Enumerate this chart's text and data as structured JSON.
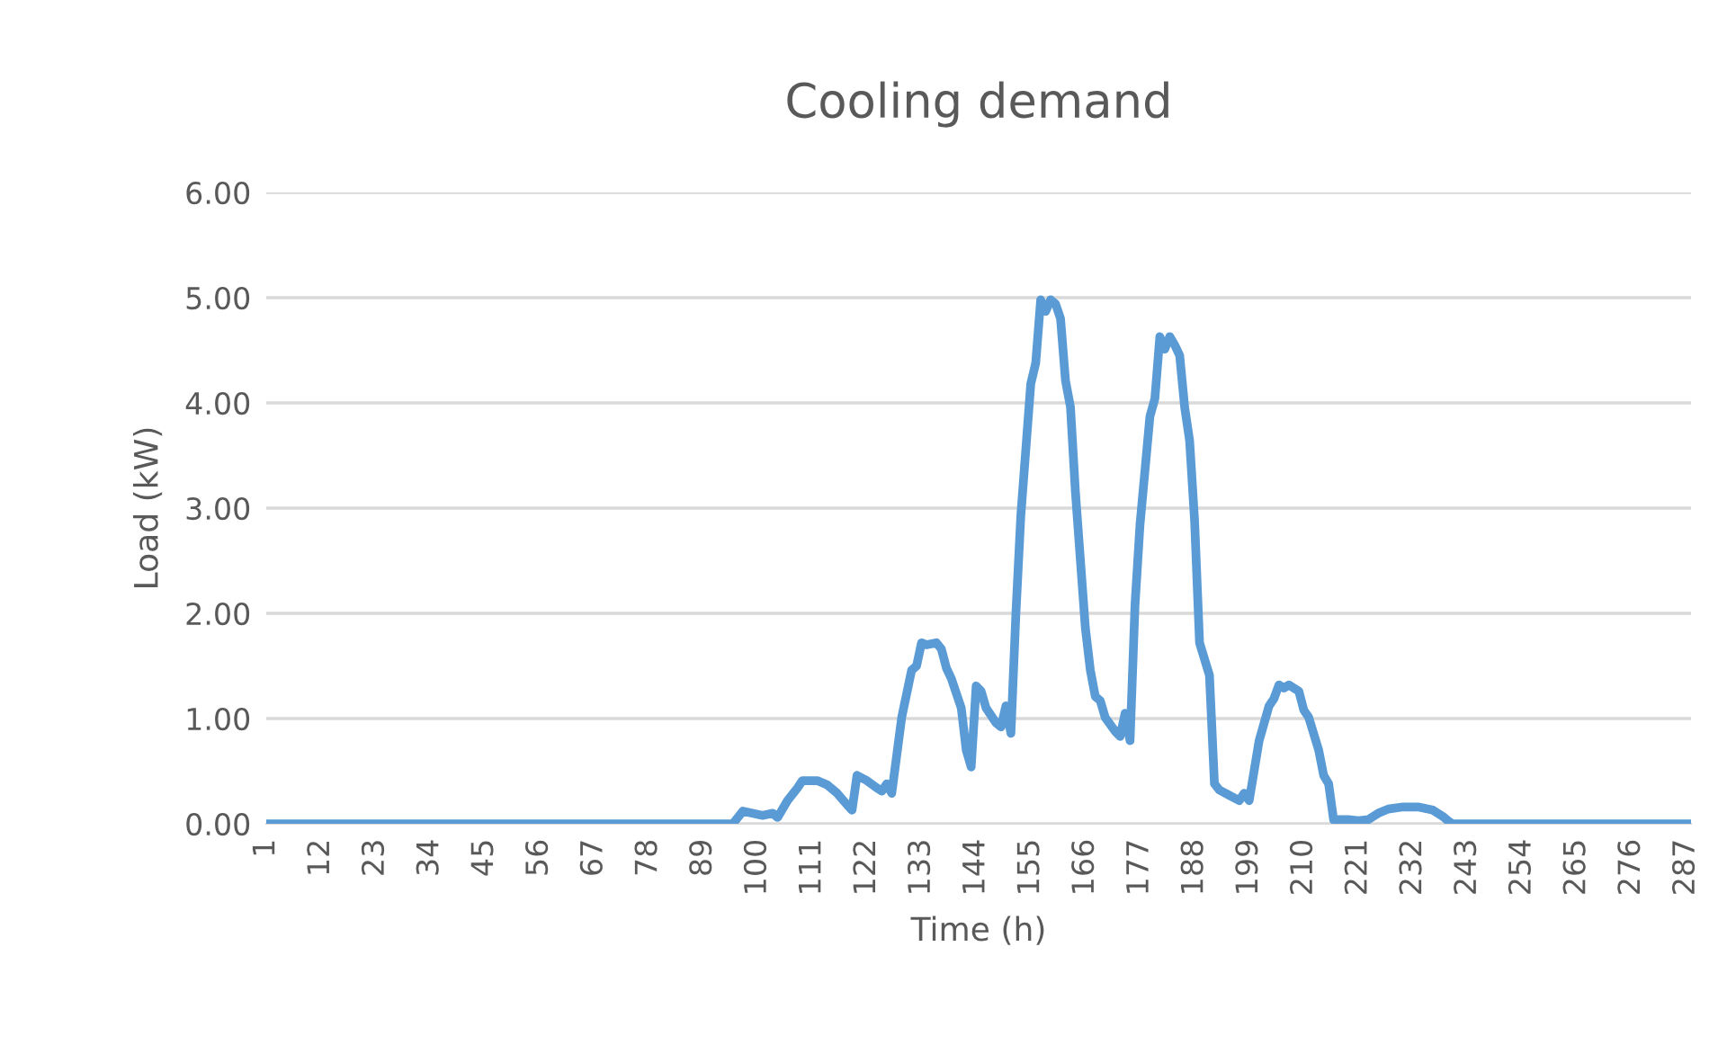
{
  "chart_data": {
    "type": "line",
    "title": "Cooling demand",
    "xlabel": "Time (h)",
    "ylabel": "Load (kW)",
    "xlim": [
      1,
      288
    ],
    "xticks": [
      1,
      12,
      23,
      34,
      45,
      56,
      67,
      78,
      89,
      100,
      111,
      122,
      133,
      144,
      155,
      166,
      177,
      188,
      199,
      210,
      221,
      232,
      243,
      254,
      265,
      276,
      287
    ],
    "ylim": [
      0,
      6
    ],
    "yticks": [
      {
        "value": 0,
        "label": "0.00"
      },
      {
        "value": 1,
        "label": "1.00"
      },
      {
        "value": 2,
        "label": "2.00"
      },
      {
        "value": 3,
        "label": "3.00"
      },
      {
        "value": 4,
        "label": "4.00"
      },
      {
        "value": 5,
        "label": "5.00"
      },
      {
        "value": 6,
        "label": "6.00"
      }
    ],
    "grid": "y",
    "legend": false,
    "marker": "none",
    "line_style": "solid",
    "series": [
      {
        "color": "#5b9bd5",
        "x": [
          1,
          95,
          97,
          101,
          103,
          104,
          106,
          108,
          109,
          112,
          114,
          116,
          118,
          119,
          120,
          122,
          124,
          125,
          126,
          127,
          129,
          131,
          132,
          133,
          134,
          136,
          137,
          138,
          139,
          141,
          142,
          143,
          144,
          145,
          146,
          148,
          149,
          150,
          151,
          152,
          153,
          155,
          156,
          157,
          158,
          159,
          160,
          161,
          162,
          163,
          164,
          166,
          167,
          168,
          169,
          170,
          172,
          173,
          174,
          175,
          176,
          177,
          179,
          180,
          181,
          182,
          183,
          184,
          185,
          186,
          187,
          188,
          189,
          191,
          192,
          193,
          195,
          197,
          198,
          199,
          201,
          203,
          204,
          205,
          206,
          207,
          209,
          210,
          211,
          213,
          214,
          215,
          216,
          219,
          221,
          223,
          225,
          227,
          230,
          233,
          236,
          238,
          239,
          240,
          288
        ],
        "values": [
          0,
          0,
          0.12,
          0.08,
          0.1,
          0.06,
          0.22,
          0.34,
          0.41,
          0.41,
          0.37,
          0.29,
          0.18,
          0.13,
          0.46,
          0.41,
          0.34,
          0.31,
          0.38,
          0.29,
          1.01,
          1.46,
          1.5,
          1.72,
          1.7,
          1.72,
          1.66,
          1.48,
          1.38,
          1.1,
          0.7,
          0.54,
          1.31,
          1.26,
          1.1,
          0.96,
          0.92,
          1.12,
          0.86,
          1.99,
          2.93,
          4.18,
          4.38,
          4.98,
          4.87,
          4.98,
          4.94,
          4.8,
          4.21,
          3.96,
          3.15,
          1.86,
          1.46,
          1.21,
          1.17,
          1.01,
          0.88,
          0.83,
          1.05,
          0.79,
          2.08,
          2.84,
          3.87,
          4.04,
          4.63,
          4.51,
          4.63,
          4.55,
          4.45,
          3.96,
          3.64,
          2.88,
          1.72,
          1.41,
          0.38,
          0.32,
          0.27,
          0.22,
          0.29,
          0.22,
          0.79,
          1.12,
          1.19,
          1.32,
          1.29,
          1.32,
          1.26,
          1.08,
          1.01,
          0.7,
          0.46,
          0.38,
          0.04,
          0.04,
          0.03,
          0.04,
          0.1,
          0.14,
          0.16,
          0.16,
          0.13,
          0.07,
          0.03,
          0,
          0
        ]
      }
    ]
  }
}
